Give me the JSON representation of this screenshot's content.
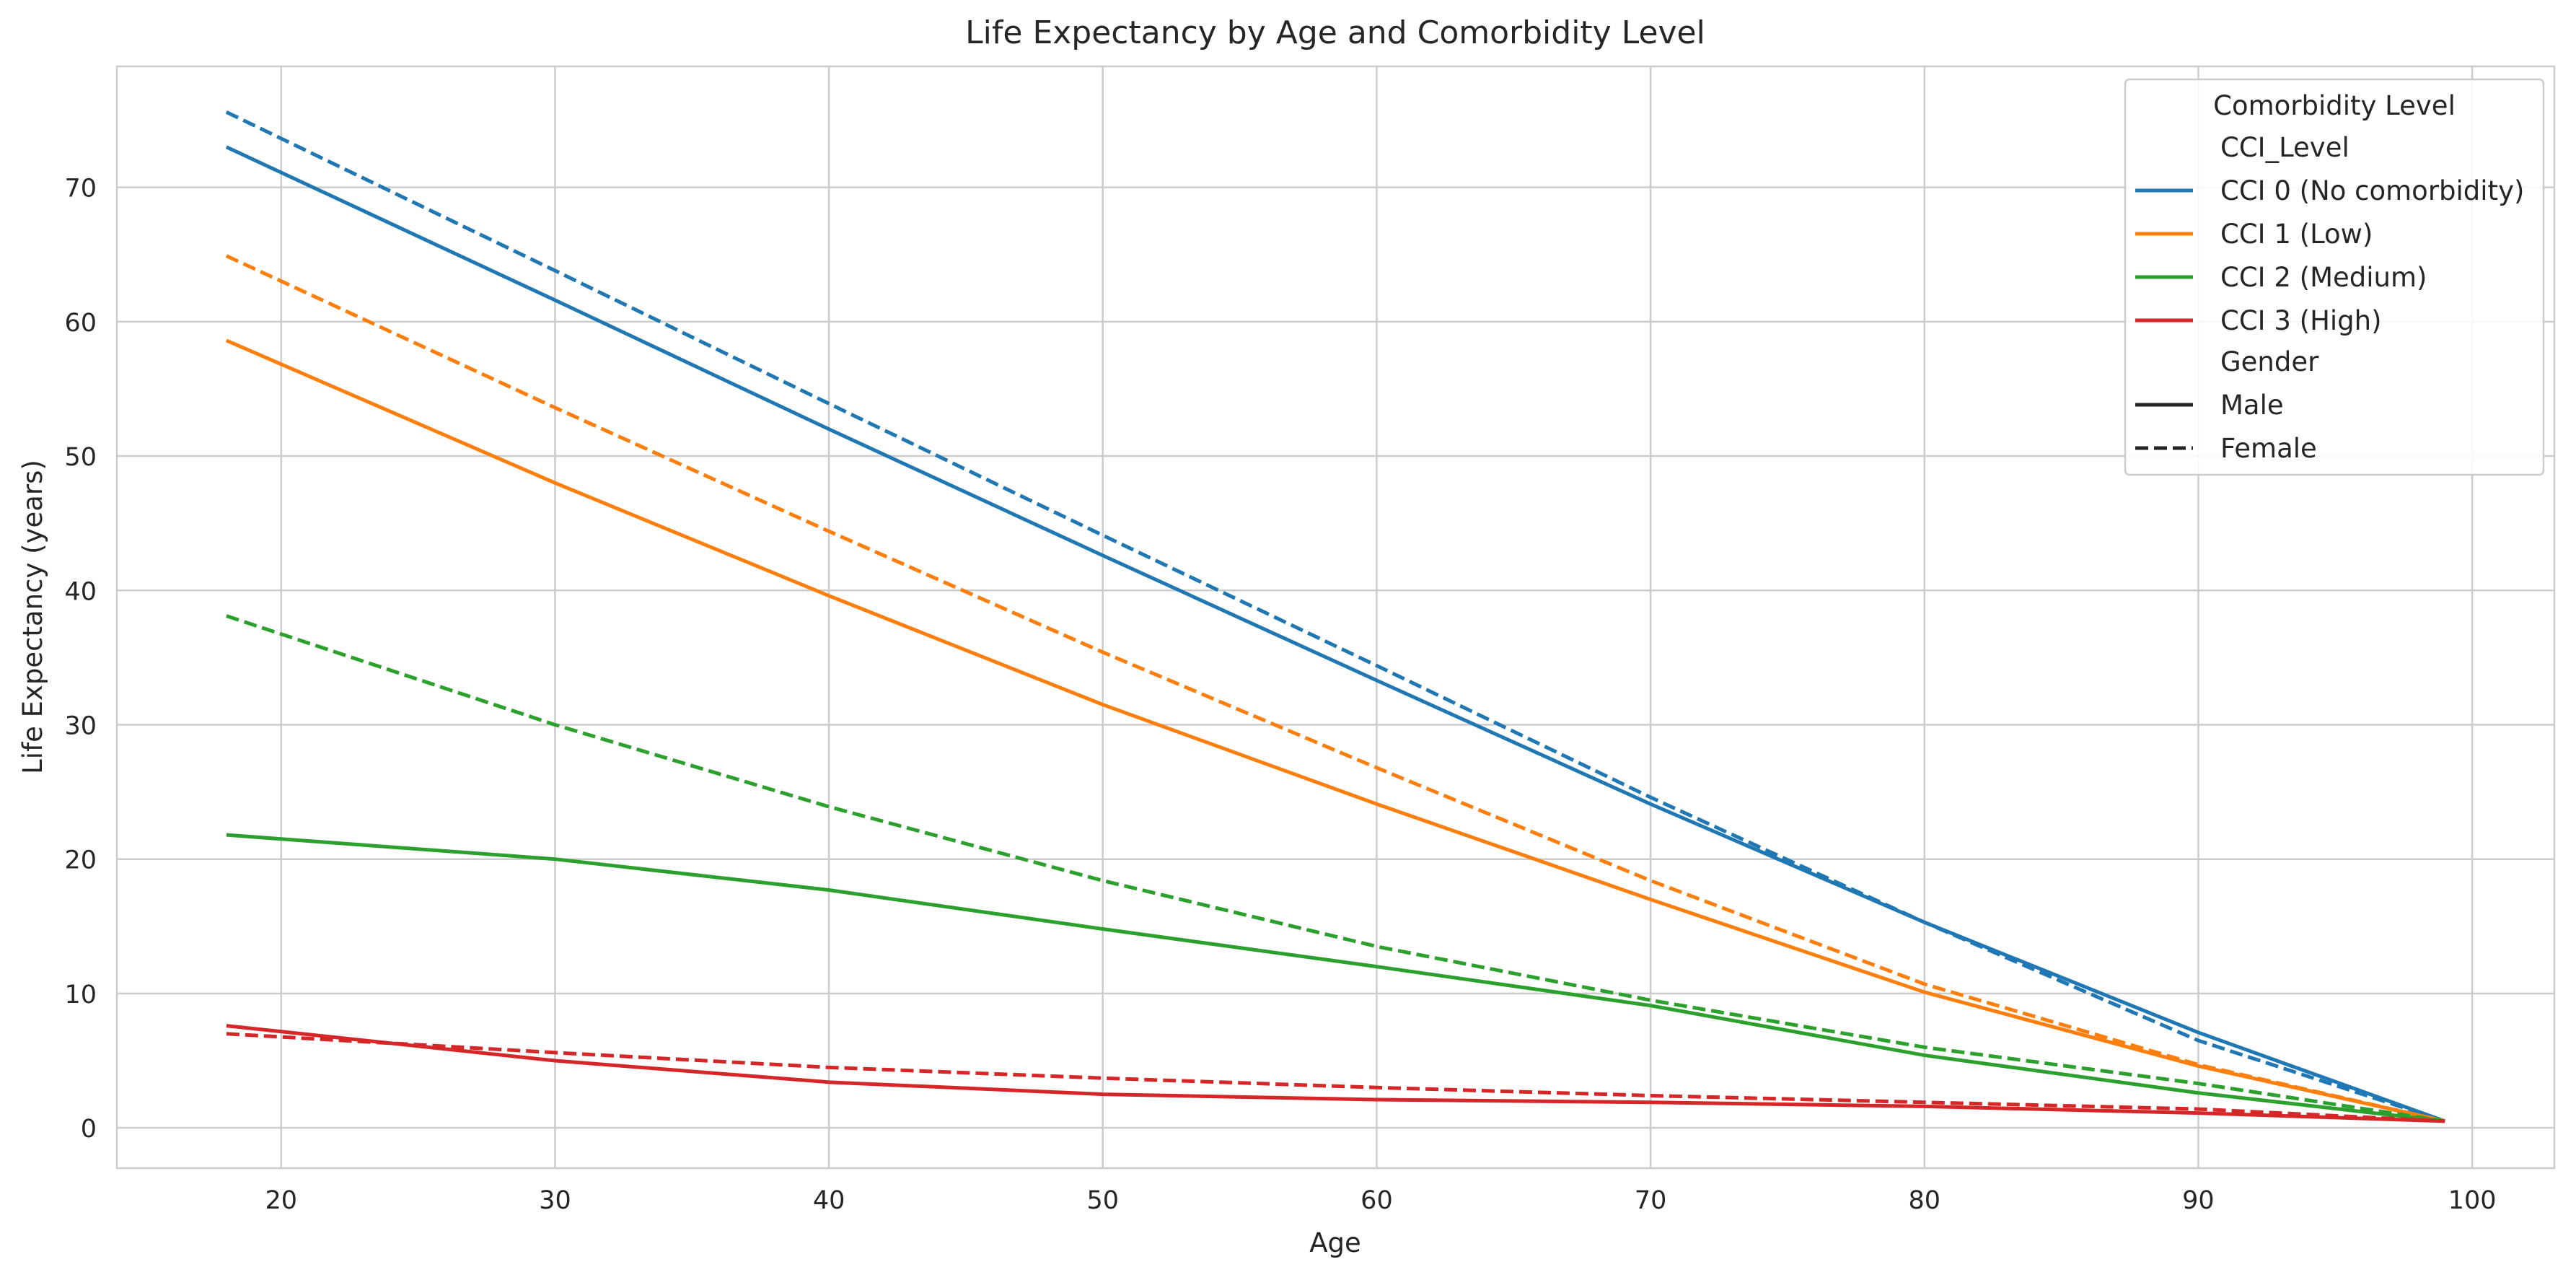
{
  "chart_data": {
    "type": "line",
    "title": "Life Expectancy by Age and Comorbidity Level",
    "xlabel": "Age",
    "ylabel": "Life Expectancy (years)",
    "xlim": [
      14,
      103
    ],
    "ylim": [
      -3,
      79
    ],
    "x_ticks": [
      20,
      30,
      40,
      50,
      60,
      70,
      80,
      90,
      100
    ],
    "y_ticks": [
      0,
      10,
      20,
      30,
      40,
      50,
      60,
      70
    ],
    "grid": true,
    "x": [
      18,
      30,
      40,
      50,
      60,
      70,
      80,
      90,
      99
    ],
    "legend": {
      "title": "Comorbidity Level",
      "placement": "top-right",
      "hue_title": "CCI_Level",
      "style_title": "Gender",
      "hue_entries": [
        {
          "label": "CCI 0 (No comorbidity)",
          "color": "#1f77b4"
        },
        {
          "label": "CCI 1 (Low)",
          "color": "#ff7f0e"
        },
        {
          "label": "CCI 2 (Medium)",
          "color": "#2ca02c"
        },
        {
          "label": "CCI 3 (High)",
          "color": "#d62728"
        }
      ],
      "style_entries": [
        {
          "label": "Male",
          "dash": "solid"
        },
        {
          "label": "Female",
          "dash": "dashed"
        }
      ]
    },
    "series": [
      {
        "cci": "CCI 0 (No comorbidity)",
        "gender": "Male",
        "color": "#1f77b4",
        "dash": "solid",
        "values": [
          73.0,
          61.6,
          52.0,
          42.6,
          33.3,
          24.1,
          15.3,
          7.1,
          0.5
        ]
      },
      {
        "cci": "CCI 0 (No comorbidity)",
        "gender": "Female",
        "color": "#1f77b4",
        "dash": "dashed",
        "values": [
          75.6,
          63.8,
          53.9,
          44.1,
          34.4,
          24.6,
          15.3,
          6.5,
          0.5
        ]
      },
      {
        "cci": "CCI 1 (Low)",
        "gender": "Male",
        "color": "#ff7f0e",
        "dash": "solid",
        "values": [
          58.6,
          48.0,
          39.6,
          31.5,
          24.1,
          17.0,
          10.1,
          4.6,
          0.5
        ]
      },
      {
        "cci": "CCI 1 (Low)",
        "gender": "Female",
        "color": "#ff7f0e",
        "dash": "dashed",
        "values": [
          64.9,
          53.6,
          44.4,
          35.4,
          26.8,
          18.4,
          10.7,
          4.7,
          0.5
        ]
      },
      {
        "cci": "CCI 2 (Medium)",
        "gender": "Male",
        "color": "#2ca02c",
        "dash": "solid",
        "values": [
          21.8,
          20.0,
          17.7,
          14.8,
          12.0,
          9.1,
          5.4,
          2.6,
          0.5
        ]
      },
      {
        "cci": "CCI 2 (Medium)",
        "gender": "Female",
        "color": "#2ca02c",
        "dash": "dashed",
        "values": [
          38.1,
          30.0,
          23.9,
          18.4,
          13.5,
          9.5,
          6.0,
          3.3,
          0.5
        ]
      },
      {
        "cci": "CCI 3 (High)",
        "gender": "Male",
        "color": "#d62728",
        "dash": "solid",
        "values": [
          7.6,
          5.0,
          3.4,
          2.5,
          2.1,
          1.9,
          1.6,
          1.1,
          0.5
        ]
      },
      {
        "cci": "CCI 3 (High)",
        "gender": "Female",
        "color": "#d62728",
        "dash": "dashed",
        "values": [
          7.0,
          5.6,
          4.5,
          3.7,
          3.0,
          2.4,
          1.9,
          1.4,
          0.5
        ]
      }
    ]
  }
}
